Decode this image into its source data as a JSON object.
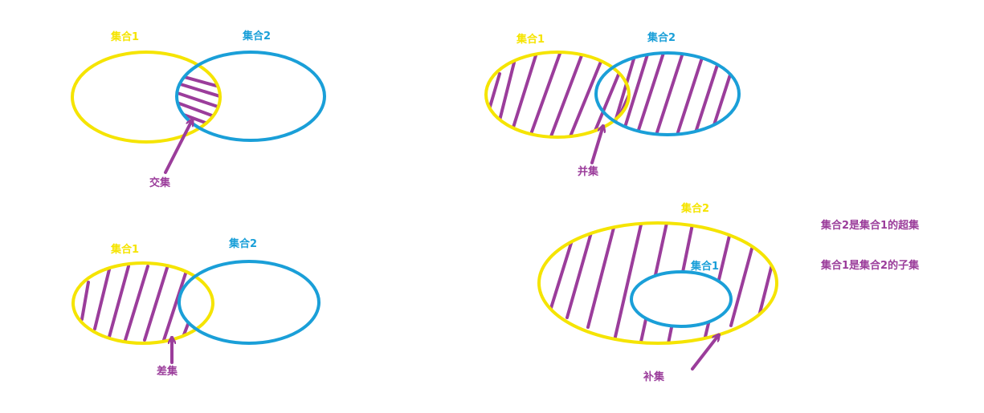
{
  "colors": {
    "set1": "#f5e400",
    "set2": "#1a9fd8",
    "hatch": "#9b3d9b",
    "background": "#ffffff"
  },
  "intersection": {
    "set1_label": "集合1",
    "set2_label": "集合2",
    "caption": "交集"
  },
  "union": {
    "set1_label": "集合1",
    "set2_label": "集合2",
    "caption": "并集"
  },
  "difference": {
    "set1_label": "集合1",
    "set2_label": "集合2",
    "caption": "差集"
  },
  "complement": {
    "outer_label": "集合2",
    "inner_label": "集合1",
    "caption": "补集",
    "notes": [
      "集合2是集合1的超集",
      "集合1是集合2的子集"
    ]
  }
}
